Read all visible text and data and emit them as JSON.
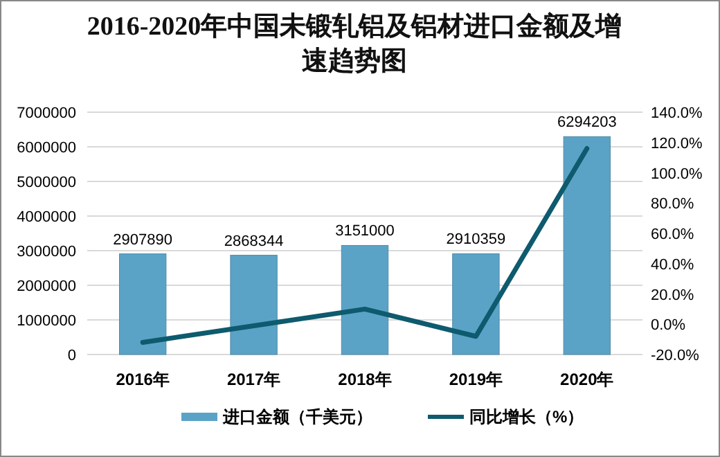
{
  "chart_data": {
    "type": "bar",
    "title": "2016-2020年中国未锻轧铝及铝材进口金额及增速趋势图",
    "categories": [
      "2016年",
      "2017年",
      "2018年",
      "2019年",
      "2020年"
    ],
    "series": [
      {
        "name": "进口金额（千美元）",
        "color": "#5ba3c6",
        "values": [
          2907890,
          2868344,
          3151000,
          2910359,
          6294203
        ],
        "value_labels": [
          "2907890",
          "2868344",
          "3151000",
          "2910359",
          "6294203"
        ]
      },
      {
        "name": "同比增长（%）",
        "type": "line",
        "axis": "y2",
        "color": "#0e5a6e",
        "values": [
          -12,
          -1,
          10,
          -8,
          116
        ]
      }
    ],
    "ylim": [
      0,
      7000000
    ],
    "yticks": [
      0,
      1000000,
      2000000,
      3000000,
      4000000,
      5000000,
      6000000,
      7000000
    ],
    "y2lim": [
      -20,
      140
    ],
    "y2ticks": [
      {
        "value": -20,
        "label": "-20.0%"
      },
      {
        "value": 0,
        "label": "0.0%"
      },
      {
        "value": 20,
        "label": "20.0%"
      },
      {
        "value": 40,
        "label": "40.0%"
      },
      {
        "value": 60,
        "label": "60.0%"
      },
      {
        "value": 80,
        "label": "80.0%"
      },
      {
        "value": 100,
        "label": "100.0%"
      },
      {
        "value": 120,
        "label": "120.0%"
      },
      {
        "value": 140,
        "label": "140.0%"
      }
    ],
    "grid": "y",
    "legend": "bottom"
  }
}
